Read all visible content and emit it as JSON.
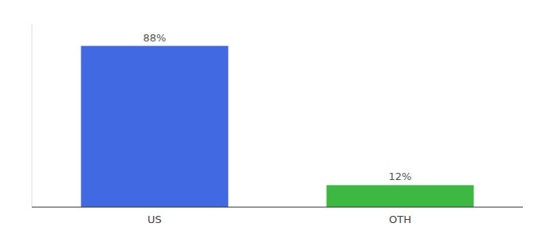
{
  "chart_data": {
    "type": "bar",
    "categories": [
      "US",
      "OTH"
    ],
    "values": [
      88,
      12
    ],
    "value_labels": [
      "88%",
      "12%"
    ],
    "colors": [
      "#4169e1",
      "#3cb843"
    ],
    "ylim": [
      0,
      100
    ],
    "data_labels": true,
    "tick_labels": "x"
  }
}
